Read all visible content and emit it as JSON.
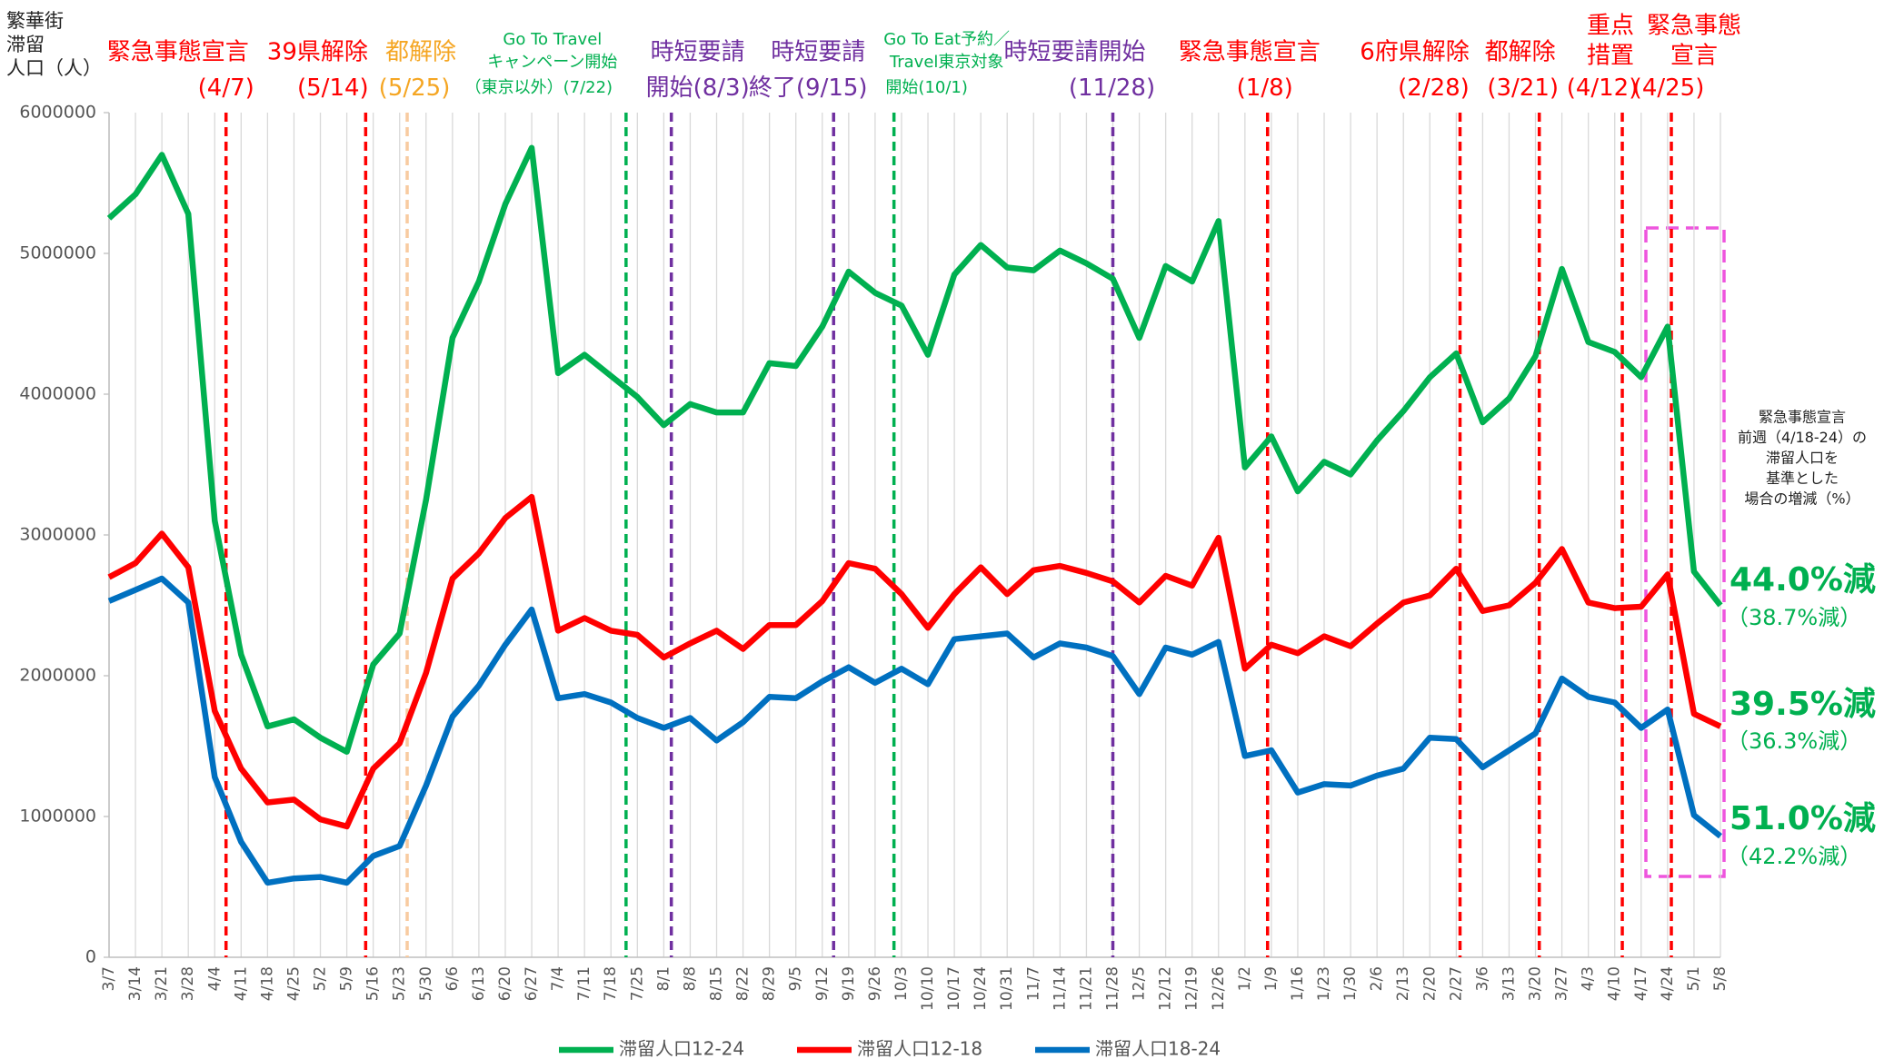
{
  "chart_data": {
    "type": "line",
    "y_label": [
      "繁華街",
      "滞留",
      "人口（人）"
    ],
    "categories": [
      "3/7",
      "3/14",
      "3/21",
      "3/28",
      "4/4",
      "4/11",
      "4/18",
      "4/25",
      "5/2",
      "5/9",
      "5/16",
      "5/23",
      "5/30",
      "6/6",
      "6/13",
      "6/20",
      "6/27",
      "7/4",
      "7/11",
      "7/18",
      "7/25",
      "8/1",
      "8/8",
      "8/15",
      "8/22",
      "8/29",
      "9/5",
      "9/12",
      "9/19",
      "9/26",
      "10/3",
      "10/10",
      "10/17",
      "10/24",
      "10/31",
      "11/7",
      "11/14",
      "11/21",
      "11/28",
      "12/5",
      "12/12",
      "12/19",
      "12/26",
      "1/2",
      "1/9",
      "1/16",
      "1/23",
      "1/30",
      "2/6",
      "2/13",
      "2/20",
      "2/27",
      "3/6",
      "3/13",
      "3/20",
      "3/27",
      "4/3",
      "4/10",
      "4/17",
      "4/24",
      "5/1",
      "5/8"
    ],
    "series": [
      {
        "name": "滞留人口12-24",
        "color": "#00b050",
        "values": [
          5250000,
          5420000,
          5700000,
          5280000,
          3100000,
          2150000,
          1640000,
          1690000,
          1560000,
          1460000,
          2080000,
          2300000,
          3250000,
          4400000,
          4800000,
          5350000,
          5750000,
          4150000,
          4280000,
          4130000,
          3980000,
          3780000,
          3930000,
          3870000,
          3870000,
          4220000,
          4200000,
          4480000,
          4870000,
          4720000,
          4630000,
          4280000,
          4850000,
          5060000,
          4900000,
          4880000,
          5020000,
          4930000,
          4820000,
          4400000,
          4910000,
          4800000,
          5230000,
          3480000,
          3700000,
          3310000,
          3520000,
          3430000,
          3670000,
          3880000,
          4120000,
          4290000,
          3800000,
          3970000,
          4270000,
          4890000,
          4370000,
          4300000,
          4120000,
          4480000,
          2740000,
          2500000
        ]
      },
      {
        "name": "滞留人口12-18",
        "color": "#ff0000",
        "values": [
          2700000,
          2800000,
          3010000,
          2770000,
          1750000,
          1340000,
          1100000,
          1120000,
          980000,
          930000,
          1340000,
          1520000,
          2020000,
          2690000,
          2870000,
          3120000,
          3270000,
          2320000,
          2410000,
          2320000,
          2290000,
          2130000,
          2230000,
          2320000,
          2190000,
          2360000,
          2360000,
          2530000,
          2800000,
          2760000,
          2580000,
          2340000,
          2580000,
          2770000,
          2580000,
          2750000,
          2780000,
          2730000,
          2670000,
          2520000,
          2710000,
          2640000,
          2980000,
          2050000,
          2220000,
          2160000,
          2280000,
          2210000,
          2370000,
          2520000,
          2570000,
          2760000,
          2460000,
          2500000,
          2660000,
          2900000,
          2520000,
          2480000,
          2490000,
          2720000,
          1730000,
          1640000
        ]
      },
      {
        "name": "滞留人口18-24",
        "color": "#0070c0",
        "values": [
          2530000,
          2610000,
          2690000,
          2520000,
          1280000,
          820000,
          530000,
          560000,
          570000,
          530000,
          720000,
          790000,
          1220000,
          1710000,
          1930000,
          2220000,
          2470000,
          1840000,
          1870000,
          1810000,
          1700000,
          1630000,
          1700000,
          1540000,
          1670000,
          1850000,
          1840000,
          1960000,
          2060000,
          1950000,
          2050000,
          1940000,
          2260000,
          2280000,
          2300000,
          2130000,
          2230000,
          2200000,
          2140000,
          1870000,
          2200000,
          2150000,
          2240000,
          1430000,
          1470000,
          1170000,
          1230000,
          1220000,
          1290000,
          1340000,
          1560000,
          1550000,
          1350000,
          1470000,
          1590000,
          1980000,
          1850000,
          1810000,
          1630000,
          1760000,
          1010000,
          860000
        ]
      }
    ],
    "ylim": [
      0,
      6000000
    ],
    "yticks": [
      0,
      1000000,
      2000000,
      3000000,
      4000000,
      5000000,
      6000000
    ],
    "grid": "x",
    "events": [
      {
        "lines": [
          "緊急事態宣言"
        ],
        "date": "(4/7)",
        "color": "#ff0000"
      },
      {
        "lines": [
          "39県解除"
        ],
        "date": "(5/14)",
        "color": "#ff0000"
      },
      {
        "lines": [
          "都解除"
        ],
        "date": "(5/25)",
        "color": "#f5a623",
        "line_color": "#f8cba0"
      },
      {
        "lines": [
          "Go To Travel",
          "キャンペーン開始"
        ],
        "note": "（東京以外）",
        "date": "(7/22)",
        "color": "#00b050"
      },
      {
        "lines": [
          "時短要請"
        ],
        "note": "開始",
        "date": "(8/3)",
        "color": "#7030a0"
      },
      {
        "lines": [
          "時短要請"
        ],
        "note": "終了",
        "date": "(9/15)",
        "color": "#7030a0"
      },
      {
        "lines": [
          "Go To Eat予約／",
          "Travel東京対象"
        ],
        "note": "開始",
        "date": "(10/1)",
        "color": "#00b050"
      },
      {
        "lines": [
          "時短要請開始"
        ],
        "date": "(11/28)",
        "color": "#7030a0"
      },
      {
        "lines": [
          "緊急事態宣言"
        ],
        "date": "(1/8)",
        "color": "#ff0000"
      },
      {
        "lines": [
          "6府県解除"
        ],
        "date": "(2/28)",
        "color": "#ff0000"
      },
      {
        "lines": [
          "都解除"
        ],
        "date": "(3/21)",
        "color": "#ff0000"
      },
      {
        "lines": [
          "重点",
          "措置"
        ],
        "date": "(4/12)",
        "color": "#ff0000"
      },
      {
        "lines": [
          "緊急事態",
          "宣言"
        ],
        "date": "(4/25)",
        "color": "#ff0000"
      }
    ],
    "note": [
      "緊急事態宣言",
      "前週（4/18-24）の",
      "滞留人口を",
      "基準とした",
      "場合の増減（%）"
    ],
    "annotations": [
      {
        "text": "44.0%減",
        "sub": "（38.7%減）",
        "color": "#00b050"
      },
      {
        "text": "39.5%減",
        "sub": "（36.3%減）",
        "color": "#00b050"
      },
      {
        "text": "51.0%減",
        "sub": "（42.2%減）",
        "color": "#00b050"
      }
    ]
  }
}
